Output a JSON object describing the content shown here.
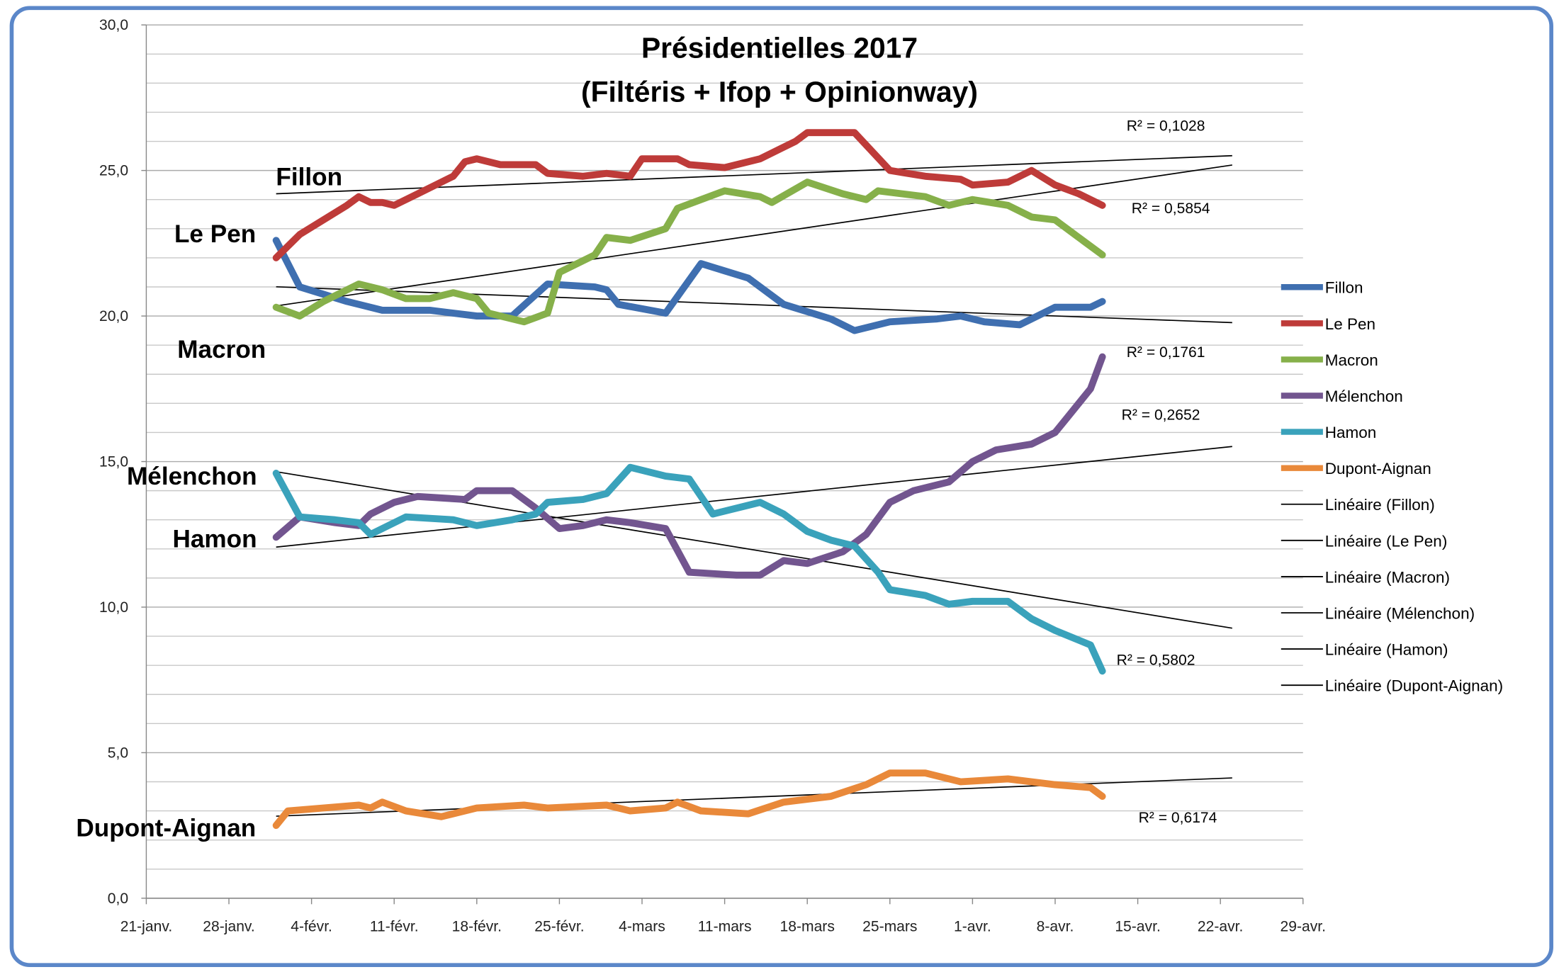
{
  "chart_data": {
    "type": "line",
    "title": "Présidentielles 2017",
    "subtitle": "(Filtéris + Ifop + Opinionway)",
    "xlabel": "",
    "ylabel": "",
    "ylim": [
      0,
      30
    ],
    "xlim": [
      "2017-01-21",
      "2017-04-29"
    ],
    "y_ticks": [
      "0,0",
      "5,0",
      "10,0",
      "15,0",
      "20,0",
      "25,0",
      "30,0"
    ],
    "x_ticks": [
      "21-janv.",
      "28-janv.",
      "4-févr.",
      "11-févr.",
      "18-févr.",
      "25-févr.",
      "4-mars",
      "11-mars",
      "18-mars",
      "25-mars",
      "1-avr.",
      "8-avr.",
      "15-avr.",
      "22-avr.",
      "29-avr."
    ],
    "grid": "horizontal, every 1 point",
    "legend_position": "right",
    "trendline_end": "2017-04-23",
    "series": [
      {
        "name": "Fillon",
        "color": "#3f6fb0",
        "label": "Fillon",
        "r2": "R² = 0,1761",
        "points": [
          [
            "2017-02-01",
            22.6
          ],
          [
            "2017-02-03",
            21.0
          ],
          [
            "2017-02-07",
            20.5
          ],
          [
            "2017-02-10",
            20.2
          ],
          [
            "2017-02-14",
            20.2
          ],
          [
            "2017-02-18",
            20.0
          ],
          [
            "2017-02-21",
            20.0
          ],
          [
            "2017-02-24",
            21.1
          ],
          [
            "2017-02-28",
            21.0
          ],
          [
            "2017-03-01",
            20.9
          ],
          [
            "2017-03-02",
            20.4
          ],
          [
            "2017-03-06",
            20.1
          ],
          [
            "2017-03-09",
            21.8
          ],
          [
            "2017-03-13",
            21.3
          ],
          [
            "2017-03-16",
            20.4
          ],
          [
            "2017-03-20",
            19.9
          ],
          [
            "2017-03-22",
            19.5
          ],
          [
            "2017-03-25",
            19.8
          ],
          [
            "2017-03-29",
            19.9
          ],
          [
            "2017-03-31",
            20.0
          ],
          [
            "2017-04-02",
            19.8
          ],
          [
            "2017-04-05",
            19.7
          ],
          [
            "2017-04-08",
            20.3
          ],
          [
            "2017-04-11",
            20.3
          ],
          [
            "2017-04-12",
            20.5
          ]
        ]
      },
      {
        "name": "Le Pen",
        "color": "#be3b39",
        "label": "Le Pen",
        "r2": "R² = 0,1028",
        "points": [
          [
            "2017-02-01",
            22.0
          ],
          [
            "2017-02-03",
            22.8
          ],
          [
            "2017-02-07",
            23.8
          ],
          [
            "2017-02-08",
            24.1
          ],
          [
            "2017-02-09",
            23.9
          ],
          [
            "2017-02-10",
            23.9
          ],
          [
            "2017-02-11",
            23.8
          ],
          [
            "2017-02-13",
            24.2
          ],
          [
            "2017-02-16",
            24.8
          ],
          [
            "2017-02-17",
            25.3
          ],
          [
            "2017-02-18",
            25.4
          ],
          [
            "2017-02-20",
            25.2
          ],
          [
            "2017-02-23",
            25.2
          ],
          [
            "2017-02-24",
            24.9
          ],
          [
            "2017-02-27",
            24.8
          ],
          [
            "2017-03-01",
            24.9
          ],
          [
            "2017-03-03",
            24.8
          ],
          [
            "2017-03-04",
            25.4
          ],
          [
            "2017-03-07",
            25.4
          ],
          [
            "2017-03-08",
            25.2
          ],
          [
            "2017-03-11",
            25.1
          ],
          [
            "2017-03-14",
            25.4
          ],
          [
            "2017-03-16",
            25.8
          ],
          [
            "2017-03-17",
            26.0
          ],
          [
            "2017-03-18",
            26.3
          ],
          [
            "2017-03-22",
            26.3
          ],
          [
            "2017-03-25",
            25.0
          ],
          [
            "2017-03-28",
            24.8
          ],
          [
            "2017-03-31",
            24.7
          ],
          [
            "2017-04-01",
            24.5
          ],
          [
            "2017-04-04",
            24.6
          ],
          [
            "2017-04-06",
            25.0
          ],
          [
            "2017-04-08",
            24.5
          ],
          [
            "2017-04-10",
            24.2
          ],
          [
            "2017-04-12",
            23.8
          ]
        ]
      },
      {
        "name": "Macron",
        "color": "#86b04a",
        "label": "Macron",
        "r2": "R² = 0,5854",
        "points": [
          [
            "2017-02-01",
            20.3
          ],
          [
            "2017-02-03",
            20.0
          ],
          [
            "2017-02-05",
            20.5
          ],
          [
            "2017-02-08",
            21.1
          ],
          [
            "2017-02-10",
            20.9
          ],
          [
            "2017-02-12",
            20.6
          ],
          [
            "2017-02-14",
            20.6
          ],
          [
            "2017-02-16",
            20.8
          ],
          [
            "2017-02-18",
            20.6
          ],
          [
            "2017-02-19",
            20.1
          ],
          [
            "2017-02-22",
            19.8
          ],
          [
            "2017-02-24",
            20.1
          ],
          [
            "2017-02-25",
            21.5
          ],
          [
            "2017-02-28",
            22.1
          ],
          [
            "2017-03-01",
            22.7
          ],
          [
            "2017-03-03",
            22.6
          ],
          [
            "2017-03-06",
            23.0
          ],
          [
            "2017-03-07",
            23.7
          ],
          [
            "2017-03-09",
            24.0
          ],
          [
            "2017-03-11",
            24.3
          ],
          [
            "2017-03-14",
            24.1
          ],
          [
            "2017-03-15",
            23.9
          ],
          [
            "2017-03-18",
            24.6
          ],
          [
            "2017-03-21",
            24.2
          ],
          [
            "2017-03-23",
            24.0
          ],
          [
            "2017-03-24",
            24.3
          ],
          [
            "2017-03-28",
            24.1
          ],
          [
            "2017-03-30",
            23.8
          ],
          [
            "2017-04-01",
            24.0
          ],
          [
            "2017-04-04",
            23.8
          ],
          [
            "2017-04-06",
            23.4
          ],
          [
            "2017-04-08",
            23.3
          ],
          [
            "2017-04-10",
            22.7
          ],
          [
            "2017-04-12",
            22.1
          ]
        ]
      },
      {
        "name": "Mélenchon",
        "color": "#72558f",
        "label": "Mélenchon",
        "r2": "R² = 0,2652",
        "points": [
          [
            "2017-02-01",
            12.4
          ],
          [
            "2017-02-03",
            13.1
          ],
          [
            "2017-02-06",
            12.9
          ],
          [
            "2017-02-08",
            12.8
          ],
          [
            "2017-02-09",
            13.2
          ],
          [
            "2017-02-11",
            13.6
          ],
          [
            "2017-02-13",
            13.8
          ],
          [
            "2017-02-17",
            13.7
          ],
          [
            "2017-02-18",
            14.0
          ],
          [
            "2017-02-21",
            14.0
          ],
          [
            "2017-02-23",
            13.4
          ],
          [
            "2017-02-25",
            12.7
          ],
          [
            "2017-02-27",
            12.8
          ],
          [
            "2017-03-01",
            13.0
          ],
          [
            "2017-03-03",
            12.9
          ],
          [
            "2017-03-06",
            12.7
          ],
          [
            "2017-03-08",
            11.2
          ],
          [
            "2017-03-12",
            11.1
          ],
          [
            "2017-03-14",
            11.1
          ],
          [
            "2017-03-16",
            11.6
          ],
          [
            "2017-03-18",
            11.5
          ],
          [
            "2017-03-21",
            11.9
          ],
          [
            "2017-03-23",
            12.5
          ],
          [
            "2017-03-25",
            13.6
          ],
          [
            "2017-03-27",
            14.0
          ],
          [
            "2017-03-30",
            14.3
          ],
          [
            "2017-04-01",
            15.0
          ],
          [
            "2017-04-03",
            15.4
          ],
          [
            "2017-04-06",
            15.6
          ],
          [
            "2017-04-08",
            16.0
          ],
          [
            "2017-04-09",
            16.5
          ],
          [
            "2017-04-11",
            17.5
          ],
          [
            "2017-04-12",
            18.6
          ]
        ]
      },
      {
        "name": "Hamon",
        "color": "#3aa2bb",
        "label": "Hamon",
        "r2": "R² = 0,5802",
        "points": [
          [
            "2017-02-01",
            14.6
          ],
          [
            "2017-02-03",
            13.1
          ],
          [
            "2017-02-06",
            13.0
          ],
          [
            "2017-02-08",
            12.9
          ],
          [
            "2017-02-09",
            12.5
          ],
          [
            "2017-02-12",
            13.1
          ],
          [
            "2017-02-16",
            13.0
          ],
          [
            "2017-02-18",
            12.8
          ],
          [
            "2017-02-21",
            13.0
          ],
          [
            "2017-02-23",
            13.2
          ],
          [
            "2017-02-24",
            13.6
          ],
          [
            "2017-02-27",
            13.7
          ],
          [
            "2017-03-01",
            13.9
          ],
          [
            "2017-03-03",
            14.8
          ],
          [
            "2017-03-06",
            14.5
          ],
          [
            "2017-03-08",
            14.4
          ],
          [
            "2017-03-10",
            13.2
          ],
          [
            "2017-03-13",
            13.5
          ],
          [
            "2017-03-14",
            13.6
          ],
          [
            "2017-03-16",
            13.2
          ],
          [
            "2017-03-18",
            12.6
          ],
          [
            "2017-03-20",
            12.3
          ],
          [
            "2017-03-22",
            12.1
          ],
          [
            "2017-03-24",
            11.2
          ],
          [
            "2017-03-25",
            10.6
          ],
          [
            "2017-03-28",
            10.4
          ],
          [
            "2017-03-30",
            10.1
          ],
          [
            "2017-04-01",
            10.2
          ],
          [
            "2017-04-04",
            10.2
          ],
          [
            "2017-04-06",
            9.6
          ],
          [
            "2017-04-08",
            9.2
          ],
          [
            "2017-04-11",
            8.7
          ],
          [
            "2017-04-12",
            7.8
          ]
        ]
      },
      {
        "name": "Dupont-Aignan",
        "color": "#e9893a",
        "label": "Dupont-Aignan",
        "r2": "R² = 0,6174",
        "points": [
          [
            "2017-02-01",
            2.5
          ],
          [
            "2017-02-02",
            3.0
          ],
          [
            "2017-02-05",
            3.1
          ],
          [
            "2017-02-08",
            3.2
          ],
          [
            "2017-02-09",
            3.1
          ],
          [
            "2017-02-10",
            3.3
          ],
          [
            "2017-02-12",
            3.0
          ],
          [
            "2017-02-15",
            2.8
          ],
          [
            "2017-02-18",
            3.1
          ],
          [
            "2017-02-22",
            3.2
          ],
          [
            "2017-02-24",
            3.1
          ],
          [
            "2017-03-01",
            3.2
          ],
          [
            "2017-03-03",
            3.0
          ],
          [
            "2017-03-06",
            3.1
          ],
          [
            "2017-03-07",
            3.3
          ],
          [
            "2017-03-09",
            3.0
          ],
          [
            "2017-03-13",
            2.9
          ],
          [
            "2017-03-16",
            3.3
          ],
          [
            "2017-03-20",
            3.5
          ],
          [
            "2017-03-23",
            3.9
          ],
          [
            "2017-03-25",
            4.3
          ],
          [
            "2017-03-28",
            4.3
          ],
          [
            "2017-03-31",
            4.0
          ],
          [
            "2017-04-04",
            4.1
          ],
          [
            "2017-04-08",
            3.9
          ],
          [
            "2017-04-11",
            3.8
          ],
          [
            "2017-04-12",
            3.5
          ]
        ]
      }
    ],
    "legend": [
      "Fillon",
      "Le Pen",
      "Macron",
      "Mélenchon",
      "Hamon",
      "Dupont-Aignan",
      "Linéaire (Fillon)",
      "Linéaire (Le Pen)",
      "Linéaire (Macron)",
      "Linéaire (Mélenchon)",
      "Linéaire (Hamon)",
      "Linéaire (Dupont-Aignan)"
    ]
  },
  "colors": {
    "frame": "#5b87c9",
    "grid": "#c8c8c8",
    "axis": "#888888",
    "trendline": "#000000"
  }
}
